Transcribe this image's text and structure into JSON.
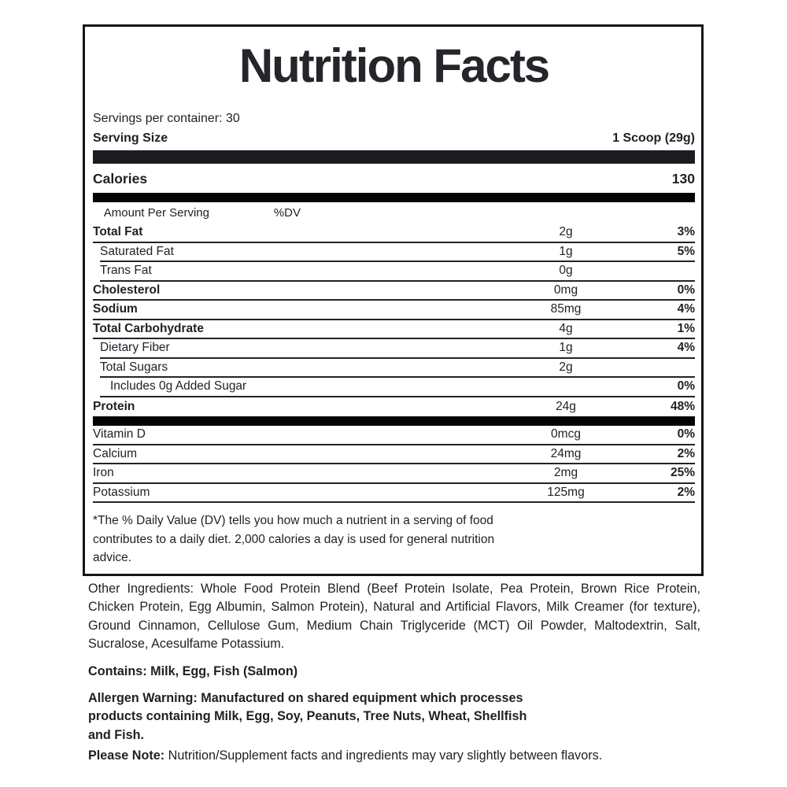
{
  "panel": {
    "title": "Nutrition Facts",
    "servings_per_container": "Servings per container: 30",
    "serving_size_label": "Serving Size",
    "serving_size_value": "1 Scoop (29g)",
    "calories_label": "Calories",
    "calories_value": "130",
    "col_amount_header": "Amount Per Serving",
    "col_dv_header": "%DV",
    "rows": [
      {
        "name": "Total Fat",
        "amount": "2g",
        "dv": "3%"
      },
      {
        "name": "Saturated Fat",
        "amount": "1g",
        "dv": "5%"
      },
      {
        "name": "Trans Fat",
        "amount": "0g",
        "dv": ""
      },
      {
        "name": "Cholesterol",
        "amount": "0mg",
        "dv": "0%"
      },
      {
        "name": "Sodium",
        "amount": "85mg",
        "dv": "4%"
      },
      {
        "name": "Total Carbohydrate",
        "amount": "4g",
        "dv": "1%"
      },
      {
        "name": "Dietary Fiber",
        "amount": "1g",
        "dv": "4%"
      },
      {
        "name": "Total Sugars",
        "amount": "2g",
        "dv": ""
      },
      {
        "name": "Includes 0g Added Sugar",
        "amount": "",
        "dv": "0%"
      },
      {
        "name": "Protein",
        "amount": "24g",
        "dv": "48%"
      }
    ],
    "vitamin_rows": [
      {
        "name": "Vitamin D",
        "amount": "0mcg",
        "dv": "0%"
      },
      {
        "name": "Calcium",
        "amount": "24mg",
        "dv": "2%"
      },
      {
        "name": "Iron",
        "amount": "2mg",
        "dv": "25%"
      },
      {
        "name": "Potassium",
        "amount": "125mg",
        "dv": "2%"
      }
    ],
    "footnote": "*The % Daily Value (DV) tells you how much a nutrient in a serving of food\ncontributes to a daily diet. 2,000 calories a day is used for general nutrition\nadvice."
  },
  "below_panel": {
    "other_ingredients": "Other Ingredients: Whole Food Protein Blend (Beef Protein Isolate, Pea Protein, Brown Rice Protein, Chicken Protein, Egg Albumin, Salmon Protein), Natural and Artificial Flavors, Milk Creamer (for texture), Ground Cinnamon, Cellulose Gum, Medium Chain Triglyceride (MCT) Oil Powder, Maltodextrin, Salt, Sucralose, Acesulfame Potassium.",
    "contains": "Contains: Milk, Egg, Fish (Salmon)",
    "allergen_warning": "Allergen Warning: Manufactured on shared equipment which processes\nproducts containing Milk, Egg, Soy, Peanuts, Tree Nuts, Wheat, Shellfish\nand Fish.",
    "please_note_label": "Please Note:",
    "please_note_text": " Nutrition/Supplement facts and ingredients may vary slightly between flavors."
  },
  "colors": {
    "text": "#1e2025",
    "panel_border": "#15161a",
    "thick_bar": "#050506",
    "row_rule": "#212329"
  }
}
